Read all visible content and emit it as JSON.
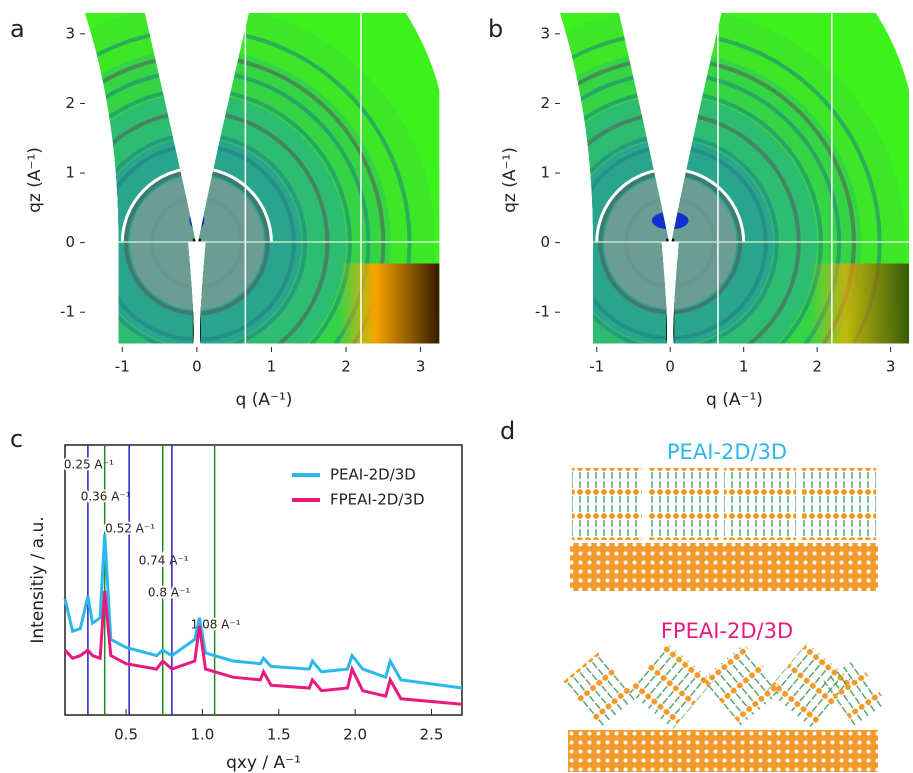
{
  "chart_data": [
    {
      "type": "image",
      "panel_label": "a",
      "xlabel": "q  (A⁻¹)",
      "ylabel": "qz (A⁻¹)",
      "xlim": [
        -1.5,
        3.3
      ],
      "ylim": [
        -1.5,
        3.3
      ],
      "xticks": [
        -1,
        0,
        1,
        2,
        3
      ],
      "yticks": [
        -1,
        0,
        1,
        2,
        3
      ]
    },
    {
      "type": "image",
      "panel_label": "b",
      "xlabel": "q  (A⁻¹)",
      "ylabel": "qz (A⁻¹)",
      "xlim": [
        -1.5,
        3.25
      ],
      "ylim": [
        -1.5,
        3.3
      ],
      "xticks": [
        -1,
        0,
        1,
        2,
        3
      ],
      "yticks": [
        -1,
        0,
        1,
        2,
        3
      ]
    },
    {
      "type": "line",
      "panel_label": "c",
      "xlabel": "qxy / A⁻¹",
      "ylabel": "Intensitiy / a.u.",
      "xlim": [
        0.1,
        2.7
      ],
      "ylim": [
        0,
        10
      ],
      "xticks": [
        0.5,
        {
          "value": 1,
          "label": "1.0"
        },
        1.5,
        {
          "value": 2,
          "label": "2.0"
        },
        2.5
      ],
      "legend": "upper right",
      "x": [
        0.1,
        0.15,
        0.2,
        0.25,
        0.28,
        0.33,
        0.36,
        0.4,
        0.5,
        0.7,
        0.74,
        0.8,
        0.95,
        0.98,
        1.02,
        1.2,
        1.38,
        1.4,
        1.45,
        1.7,
        1.72,
        1.78,
        1.95,
        1.98,
        2.05,
        2.2,
        2.23,
        2.3,
        2.7
      ],
      "series": [
        {
          "name": "PEAI-2D/3D",
          "color": "#2cb8ec",
          "values": [
            4.3,
            3.1,
            3.2,
            4.4,
            3.4,
            3.6,
            6.7,
            2.8,
            2.5,
            2.2,
            2.4,
            2.2,
            2.8,
            3.6,
            2.3,
            2.0,
            1.9,
            2.1,
            1.8,
            1.7,
            2.0,
            1.6,
            1.7,
            2.2,
            1.7,
            1.4,
            2.0,
            1.3,
            1.0
          ]
        },
        {
          "name": "FPEAI-2D/3D",
          "color": "#e8197f",
          "values": [
            2.4,
            2.1,
            2.2,
            2.4,
            2.2,
            2.1,
            4.6,
            2.2,
            1.9,
            1.7,
            2.0,
            1.7,
            2.0,
            3.3,
            1.7,
            1.4,
            1.3,
            1.6,
            1.1,
            1.0,
            1.3,
            0.9,
            1.0,
            1.7,
            0.9,
            0.7,
            1.3,
            0.6,
            0.4
          ]
        }
      ],
      "vlines": [
        {
          "value": 0.25,
          "label": "0.25 A⁻¹",
          "color": "#2323c8"
        },
        {
          "value": 0.36,
          "label": "0.36 A⁻¹",
          "color": "#1e8c1e"
        },
        {
          "value": 0.52,
          "label": "0.52 A⁻¹",
          "color": "#2323c8"
        },
        {
          "value": 0.74,
          "label": "0.74 A⁻¹",
          "color": "#1e8c1e"
        },
        {
          "value": 0.8,
          "label": "0.8 A⁻¹",
          "color": "#2323c8"
        },
        {
          "value": 1.08,
          "label": "1.08 A⁻¹",
          "color": "#1e8c1e"
        }
      ]
    }
  ],
  "diagram": {
    "panel_label": "d",
    "top_label": "PEAI-2D/3D",
    "bottom_label": "FPEAI-2D/3D"
  }
}
